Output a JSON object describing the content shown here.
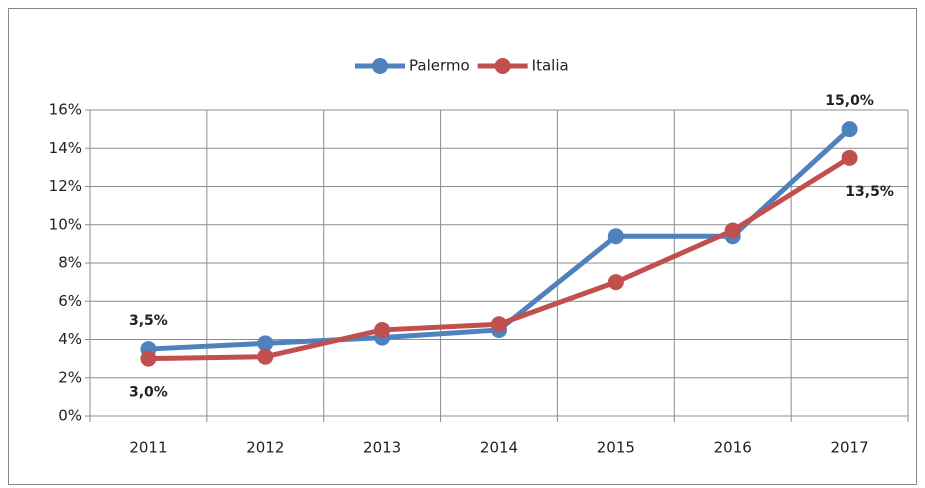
{
  "chart_data": {
    "type": "line",
    "categories": [
      "2011",
      "2012",
      "2013",
      "2014",
      "2015",
      "2016",
      "2017"
    ],
    "series": [
      {
        "name": "Palermo",
        "color": "#4f81bd",
        "values": [
          3.5,
          3.8,
          4.1,
          4.5,
          9.4,
          9.4,
          15.0
        ],
        "value_labels": [
          "3,5%",
          null,
          null,
          null,
          null,
          null,
          "15,0%"
        ]
      },
      {
        "name": "Italia",
        "color": "#c0504d",
        "values": [
          3.0,
          3.1,
          4.5,
          4.8,
          7.0,
          9.7,
          13.5
        ],
        "value_labels": [
          "3,0%",
          null,
          null,
          null,
          null,
          null,
          "13,5%"
        ]
      }
    ],
    "ylim": [
      0,
      16
    ],
    "yticks": [
      {
        "value": 0,
        "label": "0%"
      },
      {
        "value": 2,
        "label": "2%"
      },
      {
        "value": 4,
        "label": "4%"
      },
      {
        "value": 6,
        "label": "6%"
      },
      {
        "value": 8,
        "label": "8%"
      },
      {
        "value": 10,
        "label": "10%"
      },
      {
        "value": 12,
        "label": "12%"
      },
      {
        "value": 14,
        "label": "14%"
      },
      {
        "value": 16,
        "label": "16%"
      }
    ],
    "grid": true,
    "legend": "top"
  }
}
